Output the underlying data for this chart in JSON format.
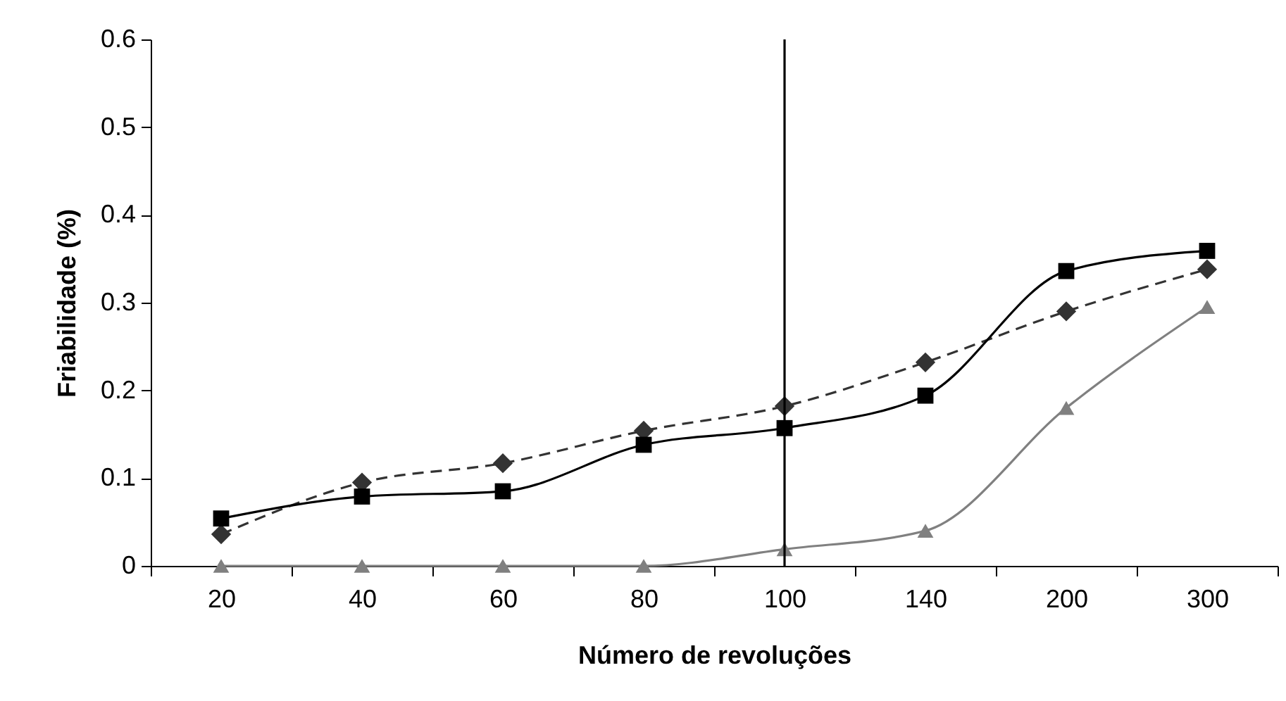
{
  "chart_data": {
    "type": "line",
    "xlabel": "Número de revoluções",
    "ylabel": "Friabilidade (%)",
    "categories": [
      "20",
      "40",
      "60",
      "80",
      "100",
      "140",
      "200",
      "300"
    ],
    "series": [
      {
        "color": "#333333",
        "marker": "diamond",
        "line_style": "dashed",
        "values": [
          0.036,
          0.095,
          0.117,
          0.154,
          0.182,
          0.232,
          0.29,
          0.338
        ]
      },
      {
        "color": "#000000",
        "marker": "square",
        "line_style": "solid",
        "values": [
          0.054,
          0.079,
          0.085,
          0.138,
          0.157,
          0.194,
          0.336,
          0.359
        ]
      },
      {
        "color": "#808080",
        "marker": "triangle",
        "line_style": "solid",
        "values": [
          0,
          0,
          0,
          0,
          0.019,
          0.04,
          0.18,
          0.295
        ]
      }
    ],
    "ylim": [
      0,
      0.6
    ],
    "yticks": [
      0,
      0.1,
      0.2,
      0.3,
      0.4,
      0.5,
      0.6
    ],
    "ref_lines": [
      {
        "axis": "x",
        "value": "100",
        "color": "#000000"
      }
    ],
    "grid": false
  }
}
